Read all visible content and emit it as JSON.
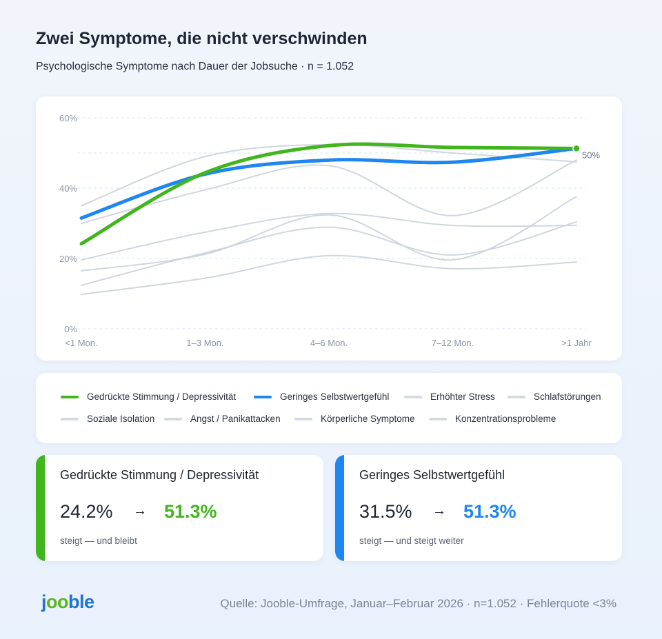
{
  "header": {
    "title": "Zwei Symptome, die nicht verschwinden",
    "subtitle": "Psychologische Symptome nach Dauer der Jobsuche · n = 1.052"
  },
  "chart_data": {
    "type": "line",
    "categories": [
      "<1 Mon.",
      "1–3 Mon.",
      "4–6 Mon.",
      "7–12 Mon.",
      ">1 Jahr"
    ],
    "ylim": [
      0,
      60
    ],
    "yticks": [
      0,
      20,
      40,
      60
    ],
    "ytick_labels": [
      "0%",
      "20%",
      "40%",
      "60%"
    ],
    "gridlines": [
      0,
      20,
      40,
      50,
      60
    ],
    "grid": true,
    "legend": "bottom",
    "annotation": "50%",
    "series": [
      {
        "name": "Erhöhter Stress",
        "color": "#cfd6e0",
        "values": [
          35.0,
          49.0,
          52.4,
          50.0,
          47.5
        ]
      },
      {
        "name": "Schlafstörungen",
        "color": "#cfd6e0",
        "values": [
          30.0,
          39.5,
          46.4,
          32.2,
          48.0
        ]
      },
      {
        "name": "Soziale Isolation",
        "color": "#cfd6e0",
        "values": [
          19.6,
          27.5,
          32.8,
          29.4,
          29.4
        ]
      },
      {
        "name": "Angst / Panikattacken",
        "color": "#cfd6e0",
        "values": [
          16.5,
          21.2,
          32.4,
          19.6,
          37.6
        ]
      },
      {
        "name": "Körperliche Symptome",
        "color": "#cfd6e0",
        "values": [
          12.4,
          21.6,
          28.9,
          21.0,
          30.4
        ]
      },
      {
        "name": "Konzentrationsprobleme",
        "color": "#cfd6e0",
        "values": [
          9.8,
          14.4,
          20.8,
          17.1,
          19.0
        ]
      },
      {
        "name": "Geringes Selbstwertgefühl",
        "color": "#1e86f0",
        "values": [
          31.5,
          44.0,
          48.0,
          47.4,
          51.3
        ]
      },
      {
        "name": "Gedrückte Stimmung / Depressivität",
        "color": "#40b51e",
        "values": [
          24.2,
          44.4,
          52.1,
          51.6,
          51.3
        ]
      }
    ]
  },
  "legend": [
    {
      "label": "Gedrückte Stimmung / Depressivität",
      "color": "#40b51e"
    },
    {
      "label": "Geringes Selbstwertgefühl",
      "color": "#1e86f0"
    },
    {
      "label": "Erhöhter Stress",
      "color": "#d3dae3"
    },
    {
      "label": "Schlafstörungen",
      "color": "#d3dae3"
    },
    {
      "label": "Soziale Isolation",
      "color": "#d3dae3"
    },
    {
      "label": "Angst / Panikattacken",
      "color": "#d3dae3"
    },
    {
      "label": "Körperliche Symptome",
      "color": "#d3dae3"
    },
    {
      "label": "Konzentrationsprobleme",
      "color": "#d3dae3"
    }
  ],
  "cards": [
    {
      "name": "Gedrückte Stimmung / Depressivität",
      "from": "24.2%",
      "arrow": "→",
      "to": "51.3%",
      "note": "steigt — und bleibt",
      "color": "#40b51e"
    },
    {
      "name": "Geringes Selbstwertgefühl",
      "from": "31.5%",
      "arrow": "→",
      "to": "51.3%",
      "note": "steigt — und steigt weiter",
      "color": "#1e86f0"
    }
  ],
  "footer": {
    "logo": "jooble",
    "logo_colors": [
      "#1e73d8",
      "#5bb51e"
    ],
    "source": "Quelle: Jooble-Umfrage, Januar–Februar 2026 · n=1.052 · Fehlerquote <3%"
  }
}
